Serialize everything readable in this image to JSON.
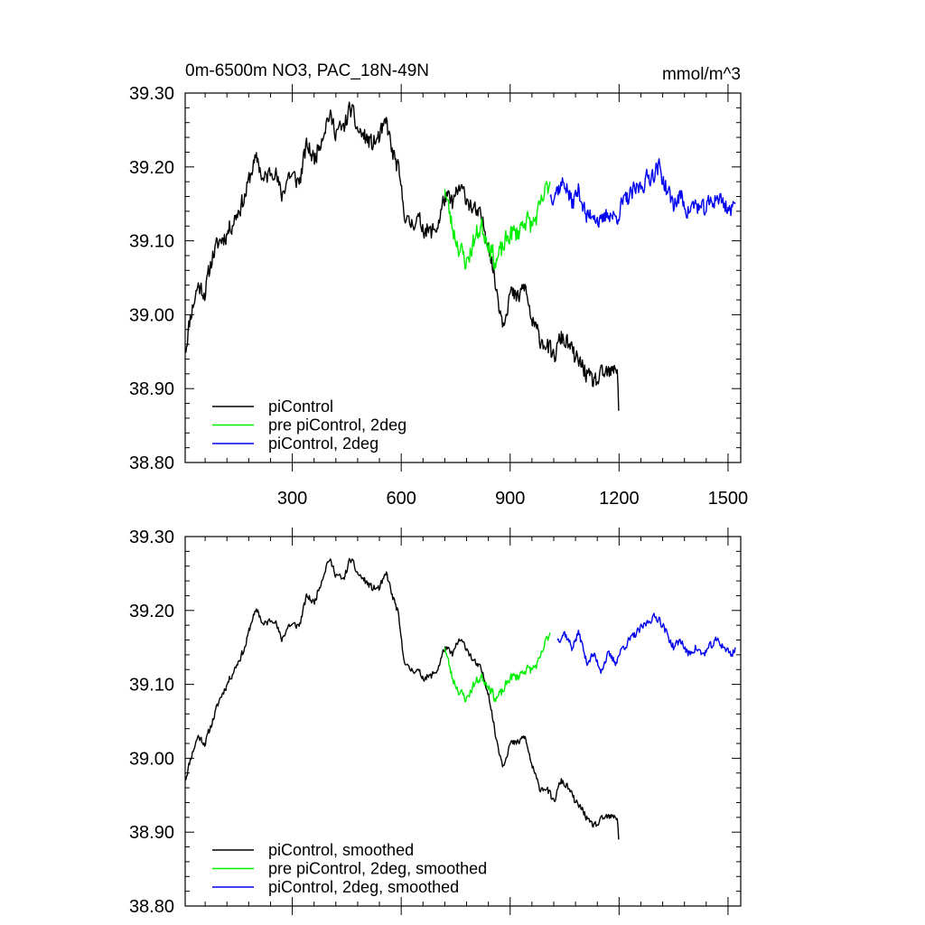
{
  "chart_data": [
    {
      "type": "line",
      "title_left": "0m-6500m NO3, PAC_18N-49N",
      "title_right": "mmol/m^3",
      "xlabel": "",
      "ylabel": "",
      "xlim": [
        5,
        1535
      ],
      "ylim": [
        38.8,
        39.3
      ],
      "xticks": [
        300,
        600,
        900,
        1200,
        1500
      ],
      "yticks": [
        38.8,
        38.9,
        39.0,
        39.1,
        39.2,
        39.3
      ],
      "ytick_labels": [
        "38.80",
        "38.90",
        "39.00",
        "39.10",
        "39.20",
        "39.30"
      ],
      "show_xtick_labels": true,
      "grid": false,
      "legend_position": "bottom-left",
      "series": [
        {
          "name": "piControl",
          "color": "#000000",
          "noise": 0.018,
          "seed": 11,
          "points": [
            [
              5,
              38.95
            ],
            [
              20,
              39.0
            ],
            [
              40,
              39.04
            ],
            [
              60,
              39.03
            ],
            [
              80,
              39.08
            ],
            [
              100,
              39.1
            ],
            [
              120,
              39.11
            ],
            [
              150,
              39.14
            ],
            [
              170,
              39.16
            ],
            [
              190,
              39.2
            ],
            [
              205,
              39.21
            ],
            [
              220,
              39.18
            ],
            [
              250,
              39.2
            ],
            [
              270,
              39.16
            ],
            [
              290,
              39.19
            ],
            [
              320,
              39.18
            ],
            [
              340,
              39.23
            ],
            [
              360,
              39.21
            ],
            [
              380,
              39.24
            ],
            [
              400,
              39.27
            ],
            [
              420,
              39.25
            ],
            [
              440,
              39.25
            ],
            [
              460,
              39.28
            ],
            [
              480,
              39.25
            ],
            [
              500,
              39.24
            ],
            [
              520,
              39.23
            ],
            [
              540,
              39.24
            ],
            [
              560,
              39.26
            ],
            [
              575,
              39.22
            ],
            [
              590,
              39.2
            ],
            [
              605,
              39.15
            ],
            [
              620,
              39.12
            ],
            [
              640,
              39.13
            ],
            [
              660,
              39.12
            ],
            [
              680,
              39.11
            ],
            [
              700,
              39.12
            ],
            [
              720,
              39.16
            ],
            [
              740,
              39.15
            ],
            [
              760,
              39.17
            ],
            [
              780,
              39.16
            ],
            [
              800,
              39.14
            ],
            [
              820,
              39.13
            ],
            [
              840,
              39.1
            ],
            [
              860,
              39.04
            ],
            [
              880,
              38.99
            ],
            [
              900,
              39.03
            ],
            [
              920,
              39.02
            ],
            [
              940,
              39.04
            ],
            [
              960,
              38.99
            ],
            [
              980,
              38.97
            ],
            [
              1000,
              38.96
            ],
            [
              1020,
              38.94
            ],
            [
              1040,
              38.97
            ],
            [
              1060,
              38.96
            ],
            [
              1080,
              38.94
            ],
            [
              1100,
              38.93
            ],
            [
              1120,
              38.91
            ],
            [
              1140,
              38.91
            ],
            [
              1160,
              38.92
            ],
            [
              1180,
              38.92
            ],
            [
              1195,
              38.93
            ],
            [
              1200,
              38.87
            ]
          ]
        },
        {
          "name": "pre piControl, 2deg",
          "color": "#00ee00",
          "noise": 0.02,
          "seed": 23,
          "points": [
            [
              720,
              39.17
            ],
            [
              740,
              39.12
            ],
            [
              760,
              39.09
            ],
            [
              780,
              39.07
            ],
            [
              800,
              39.1
            ],
            [
              820,
              39.12
            ],
            [
              840,
              39.1
            ],
            [
              860,
              39.07
            ],
            [
              880,
              39.09
            ],
            [
              900,
              39.11
            ],
            [
              920,
              39.11
            ],
            [
              940,
              39.13
            ],
            [
              960,
              39.12
            ],
            [
              980,
              39.14
            ],
            [
              1000,
              39.17
            ],
            [
              1010,
              39.18
            ]
          ]
        },
        {
          "name": "piControl, 2deg",
          "color": "#0000ee",
          "noise": 0.018,
          "seed": 37,
          "points": [
            [
              1010,
              39.16
            ],
            [
              1030,
              39.17
            ],
            [
              1050,
              39.18
            ],
            [
              1070,
              39.15
            ],
            [
              1090,
              39.17
            ],
            [
              1110,
              39.13
            ],
            [
              1130,
              39.14
            ],
            [
              1150,
              39.12
            ],
            [
              1170,
              39.14
            ],
            [
              1190,
              39.13
            ],
            [
              1210,
              39.15
            ],
            [
              1230,
              39.16
            ],
            [
              1250,
              39.17
            ],
            [
              1270,
              39.18
            ],
            [
              1290,
              39.19
            ],
            [
              1310,
              39.2
            ],
            [
              1330,
              39.17
            ],
            [
              1350,
              39.15
            ],
            [
              1370,
              39.16
            ],
            [
              1390,
              39.14
            ],
            [
              1410,
              39.15
            ],
            [
              1430,
              39.14
            ],
            [
              1450,
              39.15
            ],
            [
              1470,
              39.16
            ],
            [
              1490,
              39.15
            ],
            [
              1510,
              39.14
            ],
            [
              1520,
              39.15
            ]
          ]
        }
      ]
    },
    {
      "type": "line",
      "title_left": "",
      "title_right": "",
      "xlabel": "",
      "ylabel": "",
      "xlim": [
        5,
        1535
      ],
      "ylim": [
        38.8,
        39.3
      ],
      "xticks": [
        300,
        600,
        900,
        1200,
        1500
      ],
      "yticks": [
        38.8,
        38.9,
        39.0,
        39.1,
        39.2,
        39.3
      ],
      "ytick_labels": [
        "38.80",
        "38.90",
        "39.00",
        "39.10",
        "39.20",
        "39.30"
      ],
      "show_xtick_labels": false,
      "grid": false,
      "legend_position": "bottom-left",
      "series": [
        {
          "name": "piControl, smoothed",
          "color": "#000000",
          "noise": 0.007,
          "seed": 11,
          "points": [
            [
              5,
              38.97
            ],
            [
              20,
              39.0
            ],
            [
              40,
              39.03
            ],
            [
              60,
              39.02
            ],
            [
              80,
              39.05
            ],
            [
              100,
              39.08
            ],
            [
              120,
              39.1
            ],
            [
              150,
              39.13
            ],
            [
              170,
              39.15
            ],
            [
              190,
              39.19
            ],
            [
              205,
              39.2
            ],
            [
              220,
              39.18
            ],
            [
              250,
              39.19
            ],
            [
              270,
              39.16
            ],
            [
              290,
              39.18
            ],
            [
              320,
              39.18
            ],
            [
              340,
              39.22
            ],
            [
              360,
              39.21
            ],
            [
              380,
              39.24
            ],
            [
              400,
              39.27
            ],
            [
              420,
              39.25
            ],
            [
              440,
              39.24
            ],
            [
              460,
              39.27
            ],
            [
              480,
              39.25
            ],
            [
              500,
              39.24
            ],
            [
              520,
              39.23
            ],
            [
              540,
              39.23
            ],
            [
              560,
              39.25
            ],
            [
              575,
              39.22
            ],
            [
              590,
              39.2
            ],
            [
              605,
              39.14
            ],
            [
              620,
              39.12
            ],
            [
              640,
              39.12
            ],
            [
              660,
              39.11
            ],
            [
              680,
              39.11
            ],
            [
              700,
              39.12
            ],
            [
              720,
              39.15
            ],
            [
              740,
              39.14
            ],
            [
              760,
              39.16
            ],
            [
              780,
              39.15
            ],
            [
              800,
              39.13
            ],
            [
              820,
              39.12
            ],
            [
              840,
              39.09
            ],
            [
              860,
              39.03
            ],
            [
              880,
              38.99
            ],
            [
              900,
              39.02
            ],
            [
              920,
              39.02
            ],
            [
              940,
              39.03
            ],
            [
              960,
              38.99
            ],
            [
              980,
              38.96
            ],
            [
              1000,
              38.96
            ],
            [
              1020,
              38.94
            ],
            [
              1040,
              38.97
            ],
            [
              1060,
              38.96
            ],
            [
              1080,
              38.94
            ],
            [
              1100,
              38.93
            ],
            [
              1120,
              38.91
            ],
            [
              1140,
              38.91
            ],
            [
              1160,
              38.92
            ],
            [
              1180,
              38.92
            ],
            [
              1195,
              38.92
            ],
            [
              1200,
              38.89
            ]
          ]
        },
        {
          "name": "pre piControl, 2deg, smoothed",
          "color": "#00ee00",
          "noise": 0.009,
          "seed": 23,
          "points": [
            [
              720,
              39.15
            ],
            [
              740,
              39.11
            ],
            [
              760,
              39.09
            ],
            [
              780,
              39.08
            ],
            [
              800,
              39.1
            ],
            [
              820,
              39.11
            ],
            [
              840,
              39.1
            ],
            [
              860,
              39.08
            ],
            [
              880,
              39.09
            ],
            [
              900,
              39.11
            ],
            [
              920,
              39.11
            ],
            [
              940,
              39.12
            ],
            [
              960,
              39.12
            ],
            [
              980,
              39.13
            ],
            [
              1000,
              39.16
            ],
            [
              1010,
              39.17
            ]
          ]
        },
        {
          "name": "piControl, 2deg, smoothed",
          "color": "#0000ee",
          "noise": 0.008,
          "seed": 37,
          "points": [
            [
              1030,
              39.16
            ],
            [
              1050,
              39.17
            ],
            [
              1070,
              39.15
            ],
            [
              1090,
              39.17
            ],
            [
              1110,
              39.13
            ],
            [
              1130,
              39.14
            ],
            [
              1150,
              39.12
            ],
            [
              1170,
              39.14
            ],
            [
              1190,
              39.13
            ],
            [
              1210,
              39.15
            ],
            [
              1230,
              39.16
            ],
            [
              1250,
              39.17
            ],
            [
              1270,
              39.18
            ],
            [
              1290,
              39.19
            ],
            [
              1310,
              39.19
            ],
            [
              1330,
              39.17
            ],
            [
              1350,
              39.15
            ],
            [
              1370,
              39.16
            ],
            [
              1390,
              39.14
            ],
            [
              1410,
              39.15
            ],
            [
              1430,
              39.14
            ],
            [
              1450,
              39.15
            ],
            [
              1470,
              39.16
            ],
            [
              1490,
              39.15
            ],
            [
              1510,
              39.14
            ],
            [
              1520,
              39.15
            ]
          ]
        }
      ]
    }
  ]
}
